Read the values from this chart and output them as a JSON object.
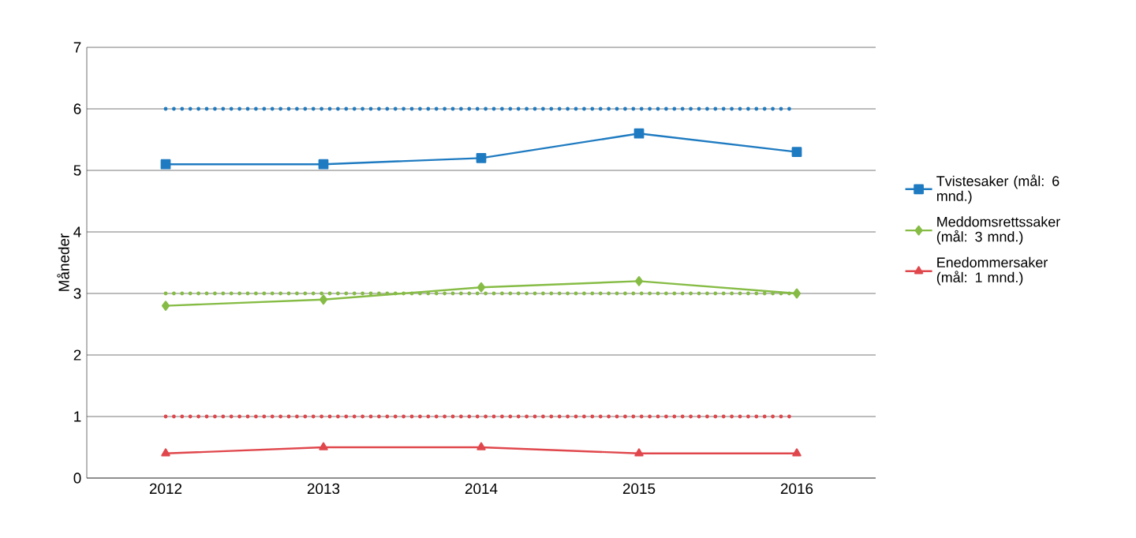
{
  "chart_data": {
    "type": "line",
    "ylabel": "Måneder",
    "categories": [
      "2012",
      "2013",
      "2014",
      "2015",
      "2016"
    ],
    "series": [
      {
        "name": "Tvistesaker (mål: 6 mnd.)",
        "color": "#1f7bc1",
        "marker": "square",
        "values": [
          5.1,
          5.1,
          5.2,
          5.6,
          5.3
        ]
      },
      {
        "name": "Meddomsrettssaker (mål: 3 mnd.)",
        "color": "#86bc45",
        "marker": "diamond",
        "values": [
          2.8,
          2.9,
          3.1,
          3.2,
          3.0
        ]
      },
      {
        "name": "Enedommersaker (mål: 1 mnd.)",
        "color": "#e0474c",
        "marker": "triangle",
        "values": [
          0.4,
          0.5,
          0.5,
          0.4,
          0.4
        ]
      }
    ],
    "ref_lines": [
      {
        "axis": "y",
        "value": 6,
        "color": "#1f7bc1",
        "line_style": "dotted"
      },
      {
        "axis": "y",
        "value": 3,
        "color": "#86bc45",
        "line_style": "dotted"
      },
      {
        "axis": "y",
        "value": 1,
        "color": "#e0474c",
        "line_style": "dotted"
      }
    ],
    "ylim": [
      0,
      7
    ],
    "yticks": [
      0,
      1,
      2,
      3,
      4,
      5,
      6,
      7
    ],
    "grid": "y",
    "legend": "right",
    "line_style": "solid"
  }
}
